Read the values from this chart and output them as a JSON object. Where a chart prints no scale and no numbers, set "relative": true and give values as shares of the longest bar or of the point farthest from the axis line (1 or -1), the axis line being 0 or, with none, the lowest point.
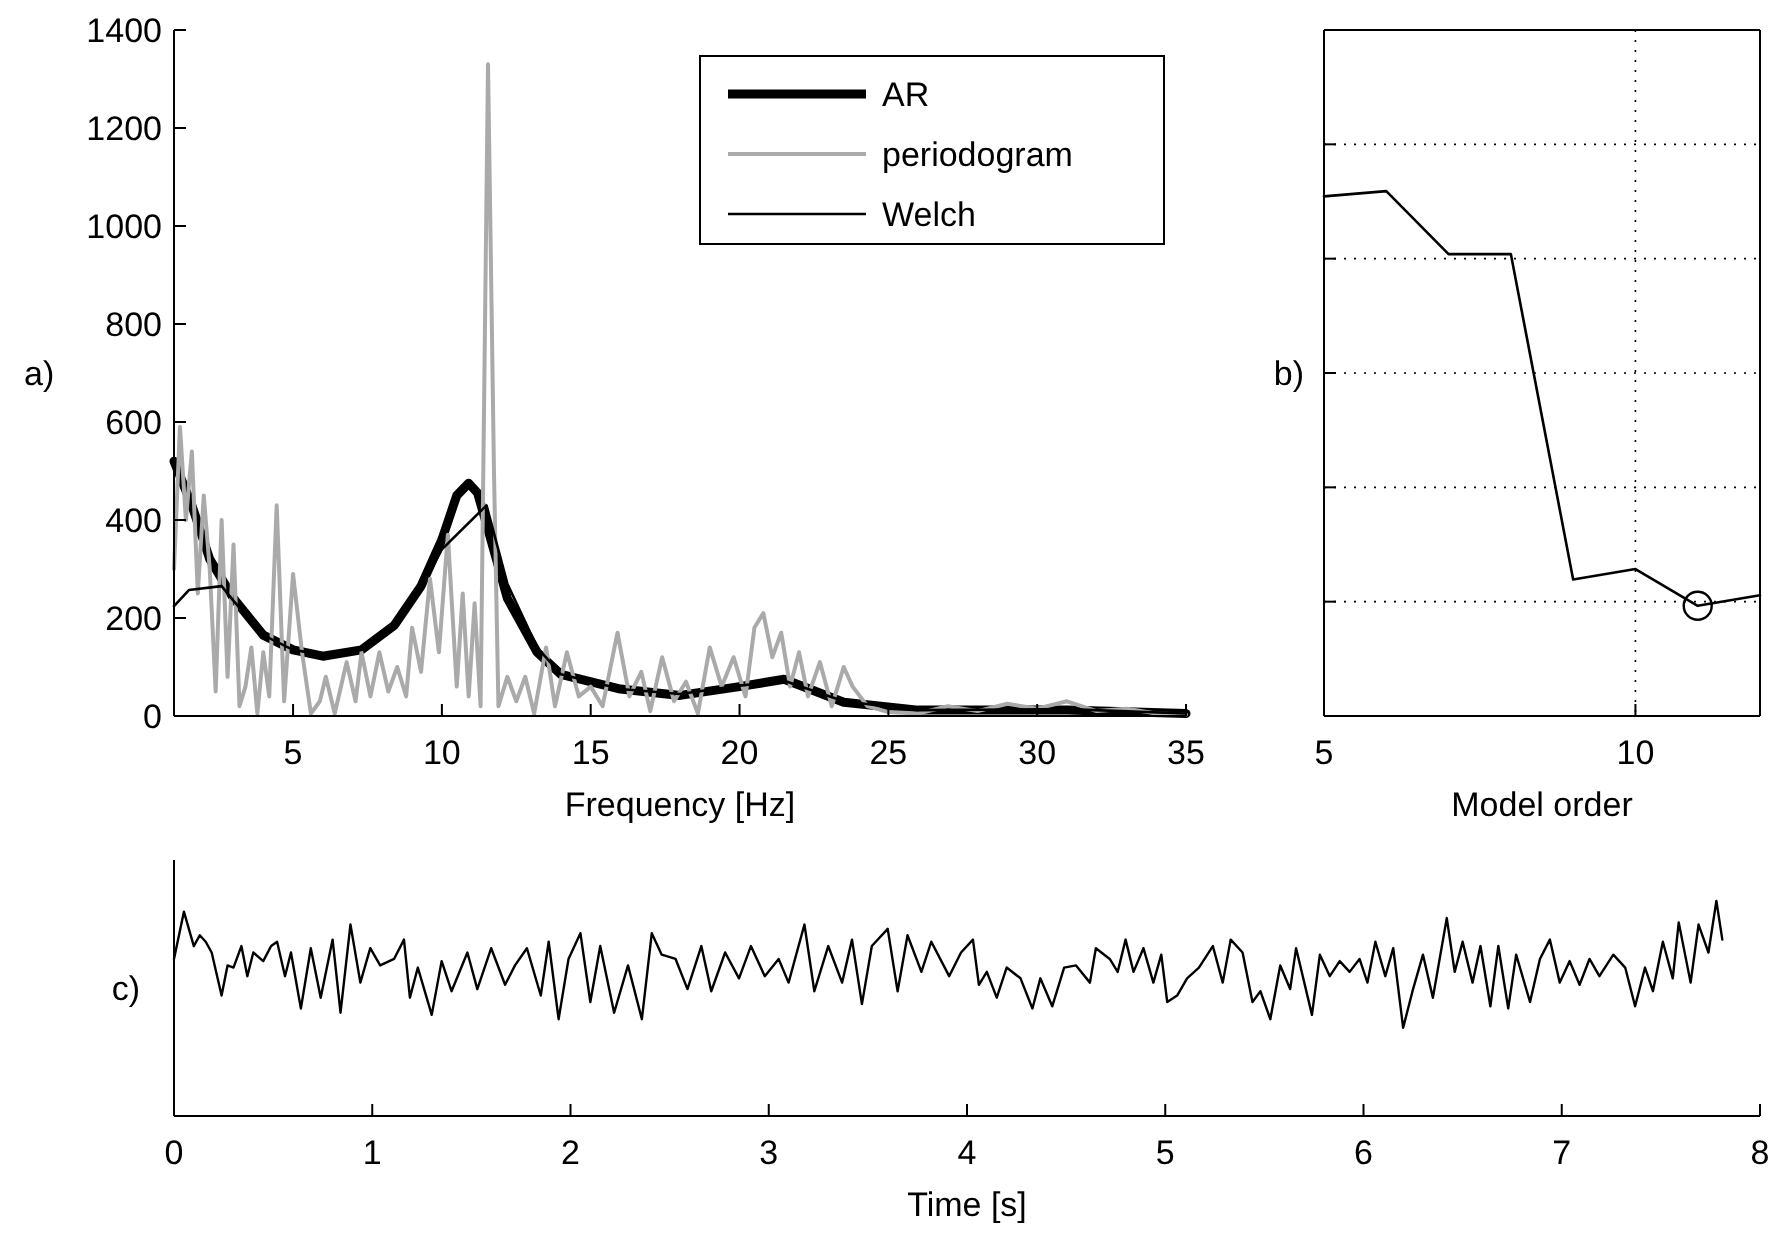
{
  "chart_data": [
    {
      "type": "line",
      "xlabel": "Frequency [Hz]",
      "ylabel": "a)",
      "xlim": [
        1,
        35
      ],
      "xticks": [
        5,
        10,
        15,
        20,
        25,
        30,
        35
      ],
      "ylim": [
        0,
        1400
      ],
      "yticks": [
        0,
        200,
        400,
        600,
        800,
        1000,
        1200,
        1400
      ],
      "legend": "top right",
      "series": [
        {
          "name": "AR",
          "color": "#000000",
          "x": [
            1,
            1.6,
            2.2,
            3,
            4,
            5,
            6,
            7.3,
            8.4,
            9.3,
            10,
            10.5,
            10.9,
            11.2,
            11.6,
            12.2,
            13.2,
            14,
            16,
            18,
            20,
            21.5,
            23.5,
            26,
            31,
            35
          ],
          "values": [
            520,
            430,
            320,
            240,
            165,
            135,
            122,
            135,
            185,
            265,
            360,
            450,
            475,
            455,
            370,
            240,
            130,
            85,
            55,
            42,
            60,
            75,
            28,
            12,
            12,
            5
          ]
        },
        {
          "name": "periodogram",
          "color": "#aaaaaa",
          "x": [
            1.0,
            1.2,
            1.4,
            1.6,
            1.8,
            2.0,
            2.2,
            2.4,
            2.6,
            2.8,
            3.0,
            3.2,
            3.4,
            3.6,
            3.8,
            4.0,
            4.2,
            4.45,
            4.7,
            5.0,
            5.3,
            5.6,
            5.9,
            6.1,
            6.4,
            6.8,
            7.1,
            7.3,
            7.6,
            7.9,
            8.2,
            8.5,
            8.8,
            9.0,
            9.3,
            9.6,
            9.9,
            10.2,
            10.5,
            10.7,
            10.9,
            11.1,
            11.3,
            11.55,
            11.75,
            11.9,
            12.2,
            12.5,
            12.8,
            13.1,
            13.5,
            13.8,
            14.2,
            14.6,
            15.0,
            15.4,
            15.9,
            16.3,
            16.7,
            17.0,
            17.4,
            17.8,
            18.2,
            18.6,
            19.0,
            19.4,
            19.8,
            20.2,
            20.5,
            20.8,
            21.1,
            21.4,
            21.7,
            22.0,
            22.3,
            22.7,
            23.1,
            23.5,
            23.8,
            24.3,
            25,
            26,
            27,
            28,
            29,
            30,
            31,
            32,
            33,
            34,
            35
          ],
          "values": [
            300,
            590,
            400,
            540,
            250,
            450,
            300,
            50,
            400,
            80,
            350,
            20,
            60,
            140,
            5,
            130,
            40,
            430,
            30,
            290,
            130,
            5,
            30,
            80,
            5,
            110,
            30,
            130,
            40,
            130,
            50,
            100,
            40,
            180,
            90,
            280,
            130,
            370,
            60,
            250,
            40,
            230,
            20,
            1330,
            500,
            20,
            80,
            30,
            80,
            5,
            140,
            20,
            130,
            40,
            60,
            20,
            170,
            40,
            90,
            10,
            120,
            30,
            70,
            5,
            140,
            60,
            120,
            40,
            180,
            210,
            120,
            170,
            60,
            130,
            40,
            110,
            20,
            100,
            60,
            20,
            8,
            5,
            20,
            10,
            25,
            15,
            30,
            10,
            15,
            5,
            3
          ]
        },
        {
          "name": "Welch",
          "color": "#000000",
          "x": [
            1,
            1.5,
            2.6,
            3,
            4,
            5,
            6,
            7.3,
            8.4,
            9.3,
            10,
            11.5,
            12.2,
            13.2,
            14,
            16,
            18,
            20,
            21.5,
            23.5,
            26,
            31,
            35
          ],
          "values": [
            224,
            257,
            265,
            235,
            165,
            135,
            125,
            135,
            180,
            260,
            340,
            430,
            270,
            140,
            85,
            55,
            45,
            62,
            72,
            30,
            12,
            14,
            5
          ]
        }
      ]
    },
    {
      "type": "line",
      "xlabel": "Model order",
      "ylabel": "b)",
      "xlim": [
        5,
        12
      ],
      "xticks": [
        5,
        10
      ],
      "relative": true,
      "tick_labels": "x",
      "grid": true,
      "series": [
        {
          "color": "#000000",
          "x": [
            5,
            6,
            7,
            8,
            9,
            10,
            11,
            12
          ],
          "values": [
            0.99,
            1,
            0.88,
            0.88,
            0.26,
            0.28,
            0.21,
            0.23
          ]
        },
        {
          "type": "scatter",
          "marker": "circle",
          "color": "#000000",
          "x": [
            11
          ],
          "values": [
            0.21
          ]
        }
      ]
    },
    {
      "type": "line",
      "xlabel": "Time [s]",
      "ylabel": "c)",
      "xlim": [
        0,
        8
      ],
      "xticks": [
        0,
        1,
        2,
        3,
        4,
        5,
        6,
        7,
        8
      ],
      "relative": true,
      "tick_labels": "x",
      "series": [
        {
          "color": "#000000",
          "x": [
            0,
            0.05,
            0.1,
            0.13,
            0.16,
            0.19,
            0.24,
            0.27,
            0.3,
            0.34,
            0.37,
            0.4,
            0.45,
            0.49,
            0.52,
            0.56,
            0.59,
            0.64,
            0.69,
            0.74,
            0.8,
            0.84,
            0.89,
            0.94,
            0.99,
            1.04,
            1.11,
            1.16,
            1.19,
            1.23,
            1.3,
            1.35,
            1.4,
            1.48,
            1.53,
            1.6,
            1.67,
            1.72,
            1.78,
            1.85,
            1.89,
            1.94,
            1.99,
            2.05,
            2.1,
            2.15,
            2.22,
            2.29,
            2.36,
            2.41,
            2.46,
            2.53,
            2.59,
            2.66,
            2.71,
            2.78,
            2.85,
            2.91,
            2.98,
            3.05,
            3.1,
            3.18,
            3.23,
            3.3,
            3.37,
            3.42,
            3.47,
            3.52,
            3.6,
            3.65,
            3.7,
            3.77,
            3.82,
            3.91,
            3.97,
            4.03,
            4.06,
            4.1,
            4.15,
            4.2,
            4.27,
            4.33,
            4.37,
            4.43,
            4.49,
            4.55,
            4.62,
            4.65,
            4.72,
            4.76,
            4.8,
            4.84,
            4.89,
            4.94,
            4.98,
            5.01,
            5.06,
            5.11,
            5.17,
            5.24,
            5.29,
            5.33,
            5.39,
            5.44,
            5.48,
            5.53,
            5.58,
            5.63,
            5.66,
            5.74,
            5.78,
            5.83,
            5.88,
            5.93,
            5.98,
            6.02,
            6.06,
            6.11,
            6.15,
            6.2,
            6.25,
            6.3,
            6.35,
            6.42,
            6.46,
            6.5,
            6.55,
            6.59,
            6.64,
            6.68,
            6.73,
            6.77,
            6.84,
            6.89,
            6.94,
            6.99,
            7.04,
            7.09,
            7.14,
            7.19,
            7.26,
            7.32,
            7.37,
            7.42,
            7.46,
            7.51,
            7.56,
            7.59,
            7.65,
            7.69,
            7.74,
            7.78,
            7.81
          ],
          "values": [
            0.73,
            0.95,
            0.79,
            0.84,
            0.81,
            0.76,
            0.56,
            0.7,
            0.69,
            0.79,
            0.65,
            0.76,
            0.72,
            0.79,
            0.81,
            0.65,
            0.76,
            0.5,
            0.78,
            0.55,
            0.82,
            0.48,
            0.89,
            0.62,
            0.78,
            0.7,
            0.73,
            0.82,
            0.55,
            0.69,
            0.47,
            0.72,
            0.58,
            0.76,
            0.59,
            0.78,
            0.61,
            0.7,
            0.78,
            0.56,
            0.81,
            0.45,
            0.73,
            0.85,
            0.53,
            0.79,
            0.48,
            0.7,
            0.45,
            0.85,
            0.75,
            0.73,
            0.59,
            0.79,
            0.58,
            0.76,
            0.64,
            0.79,
            0.65,
            0.73,
            0.62,
            0.89,
            0.58,
            0.79,
            0.62,
            0.82,
            0.52,
            0.79,
            0.87,
            0.58,
            0.84,
            0.67,
            0.81,
            0.65,
            0.76,
            0.82,
            0.61,
            0.67,
            0.55,
            0.69,
            0.64,
            0.5,
            0.64,
            0.51,
            0.69,
            0.7,
            0.62,
            0.78,
            0.73,
            0.67,
            0.82,
            0.67,
            0.78,
            0.62,
            0.75,
            0.53,
            0.56,
            0.64,
            0.69,
            0.79,
            0.62,
            0.82,
            0.76,
            0.53,
            0.58,
            0.45,
            0.7,
            0.59,
            0.78,
            0.47,
            0.75,
            0.65,
            0.72,
            0.67,
            0.73,
            0.62,
            0.81,
            0.65,
            0.78,
            0.41,
            0.59,
            0.75,
            0.55,
            0.92,
            0.67,
            0.81,
            0.62,
            0.79,
            0.51,
            0.79,
            0.5,
            0.75,
            0.53,
            0.73,
            0.82,
            0.62,
            0.72,
            0.61,
            0.73,
            0.65,
            0.75,
            0.69,
            0.51,
            0.69,
            0.58,
            0.81,
            0.64,
            0.9,
            0.62,
            0.89,
            0.76,
            1,
            0.82
          ]
        }
      ]
    }
  ]
}
